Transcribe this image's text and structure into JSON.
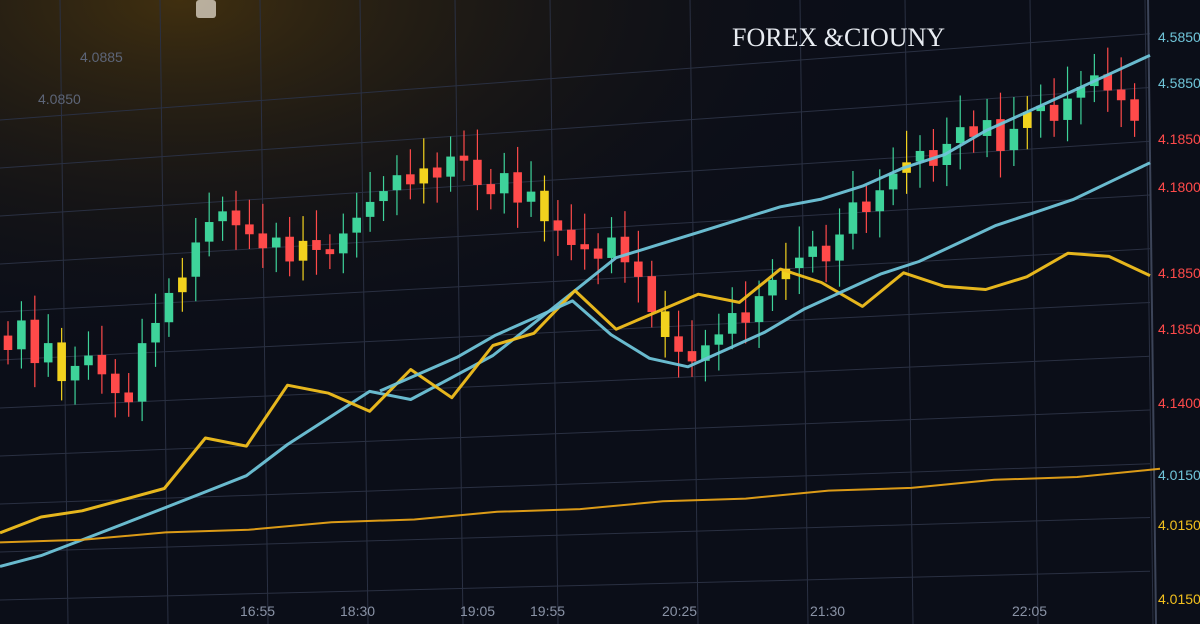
{
  "chart_data": {
    "type": "line",
    "title": "FOREX &CIOUNY",
    "ylim": [
      0,
      100
    ],
    "grid": true,
    "candles": {
      "name": "",
      "open": [
        55,
        52,
        58,
        49,
        53,
        45,
        48,
        50,
        46,
        42,
        40,
        52,
        56,
        62,
        65,
        72,
        76,
        78,
        75,
        73,
        70,
        72,
        67,
        71,
        69,
        68,
        72,
        75,
        78,
        80,
        83,
        81,
        84,
        82,
        86,
        85,
        80,
        78,
        82,
        76,
        78,
        72,
        70,
        67,
        66,
        64,
        68,
        63,
        60,
        53,
        48,
        45,
        43,
        46,
        48,
        52,
        50,
        55,
        58,
        60,
        62,
        64,
        61,
        66,
        72,
        70,
        74,
        77,
        79,
        81,
        78,
        82,
        85,
        83,
        86,
        80,
        84,
        87,
        88,
        85,
        89,
        91,
        93,
        90,
        88
      ],
      "close": [
        52,
        58,
        49,
        53,
        45,
        48,
        50,
        46,
        42,
        40,
        52,
        56,
        62,
        65,
        72,
        76,
        78,
        75,
        73,
        70,
        72,
        67,
        71,
        69,
        68,
        72,
        75,
        78,
        80,
        83,
        81,
        84,
        82,
        86,
        85,
        80,
        78,
        82,
        76,
        78,
        72,
        70,
        67,
        66,
        64,
        68,
        63,
        60,
        53,
        48,
        45,
        43,
        46,
        48,
        52,
        50,
        55,
        58,
        60,
        62,
        64,
        61,
        66,
        72,
        70,
        74,
        77,
        79,
        81,
        78,
        82,
        85,
        83,
        86,
        80,
        84,
        87,
        88,
        85,
        89,
        91,
        93,
        90,
        88,
        84
      ]
    },
    "series": [
      {
        "name": "",
        "color": "#6fc4d8",
        "values": [
          7,
          9,
          12,
          15,
          18,
          21,
          24,
          30,
          35,
          40,
          38,
          42,
          46,
          52,
          58,
          64,
          66,
          68,
          70,
          72,
          73,
          75,
          78,
          80,
          84,
          87,
          90,
          93,
          96
        ]
      },
      {
        "name": "",
        "color": "#f2c01e",
        "values": [
          14,
          17,
          18,
          20,
          22,
          32,
          30,
          42,
          40,
          36,
          44,
          38,
          48,
          50,
          58,
          50,
          53,
          56,
          54,
          60,
          57,
          52,
          58,
          55,
          54,
          56,
          60,
          59,
          55
        ]
      },
      {
        "name": "",
        "color": "#e8a317",
        "values": [
          12,
          12,
          13,
          13,
          14,
          14,
          15,
          15,
          16,
          16,
          17,
          17,
          18,
          18,
          19
        ]
      },
      {
        "name": "",
        "color": "#6fc4d8",
        "values": [
          40,
          43,
          46,
          50,
          53,
          56,
          49,
          44,
          42,
          45,
          48,
          52,
          55,
          58,
          60,
          63,
          66,
          68,
          70,
          73,
          76
        ]
      }
    ],
    "y_tick_labels": [
      {
        "text": "4.5850",
        "color": "#6fc4d8"
      },
      {
        "text": "4.5850",
        "color": "#6fc4d8"
      },
      {
        "text": "4.1850",
        "color": "#ff4a4a"
      },
      {
        "text": "4.1800",
        "color": "#ff4a4a"
      },
      {
        "text": "4.1850",
        "color": "#ff4a4a"
      },
      {
        "text": "4.1850",
        "color": "#ff4a4a"
      },
      {
        "text": "4.1400",
        "color": "#ff4a4a"
      },
      {
        "text": "4.0150",
        "color": "#6fc4d8"
      },
      {
        "text": "4.0150",
        "color": "#f2c01e"
      },
      {
        "text": "4.0150",
        "color": "#f2c01e"
      }
    ],
    "x_tick_labels": [
      "16:55",
      "18:30",
      "19:05",
      "19:55",
      "20:25",
      "21:30",
      "22:05"
    ],
    "left_labels": [
      "4.0885",
      "4.0850"
    ],
    "colors": {
      "up": "#3ed39a",
      "down": "#ff4a4a",
      "neutral": "#f2d21e",
      "grid": "#2a3042",
      "background": "#0b0e18"
    }
  }
}
